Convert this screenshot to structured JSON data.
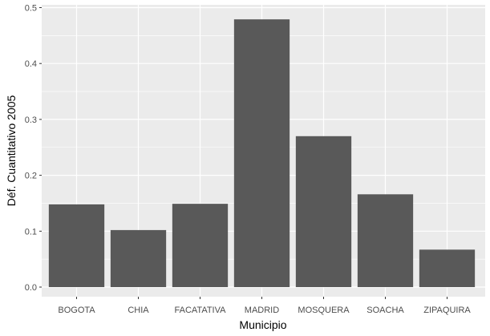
{
  "chart_data": {
    "type": "bar",
    "categories": [
      "BOGOTA",
      "CHIA",
      "FACATATIVA",
      "MADRID",
      "MOSQUERA",
      "SOACHA",
      "ZIPAQUIRA"
    ],
    "values": [
      0.148,
      0.102,
      0.149,
      0.479,
      0.27,
      0.166,
      0.067
    ],
    "ylim": [
      0,
      0.5
    ],
    "yticks": [
      "0.0",
      "0.1",
      "0.2",
      "0.3",
      "0.4",
      "0.5"
    ],
    "xlabel": "Municipio",
    "ylabel": "Déf. Cuantitativo 2005",
    "grid": true,
    "colors": {
      "panel": "#ebebeb",
      "grid": "#ffffff",
      "bar": "#595959",
      "tick_text": "#4d4d4d",
      "tick_mark": "#333333"
    }
  }
}
